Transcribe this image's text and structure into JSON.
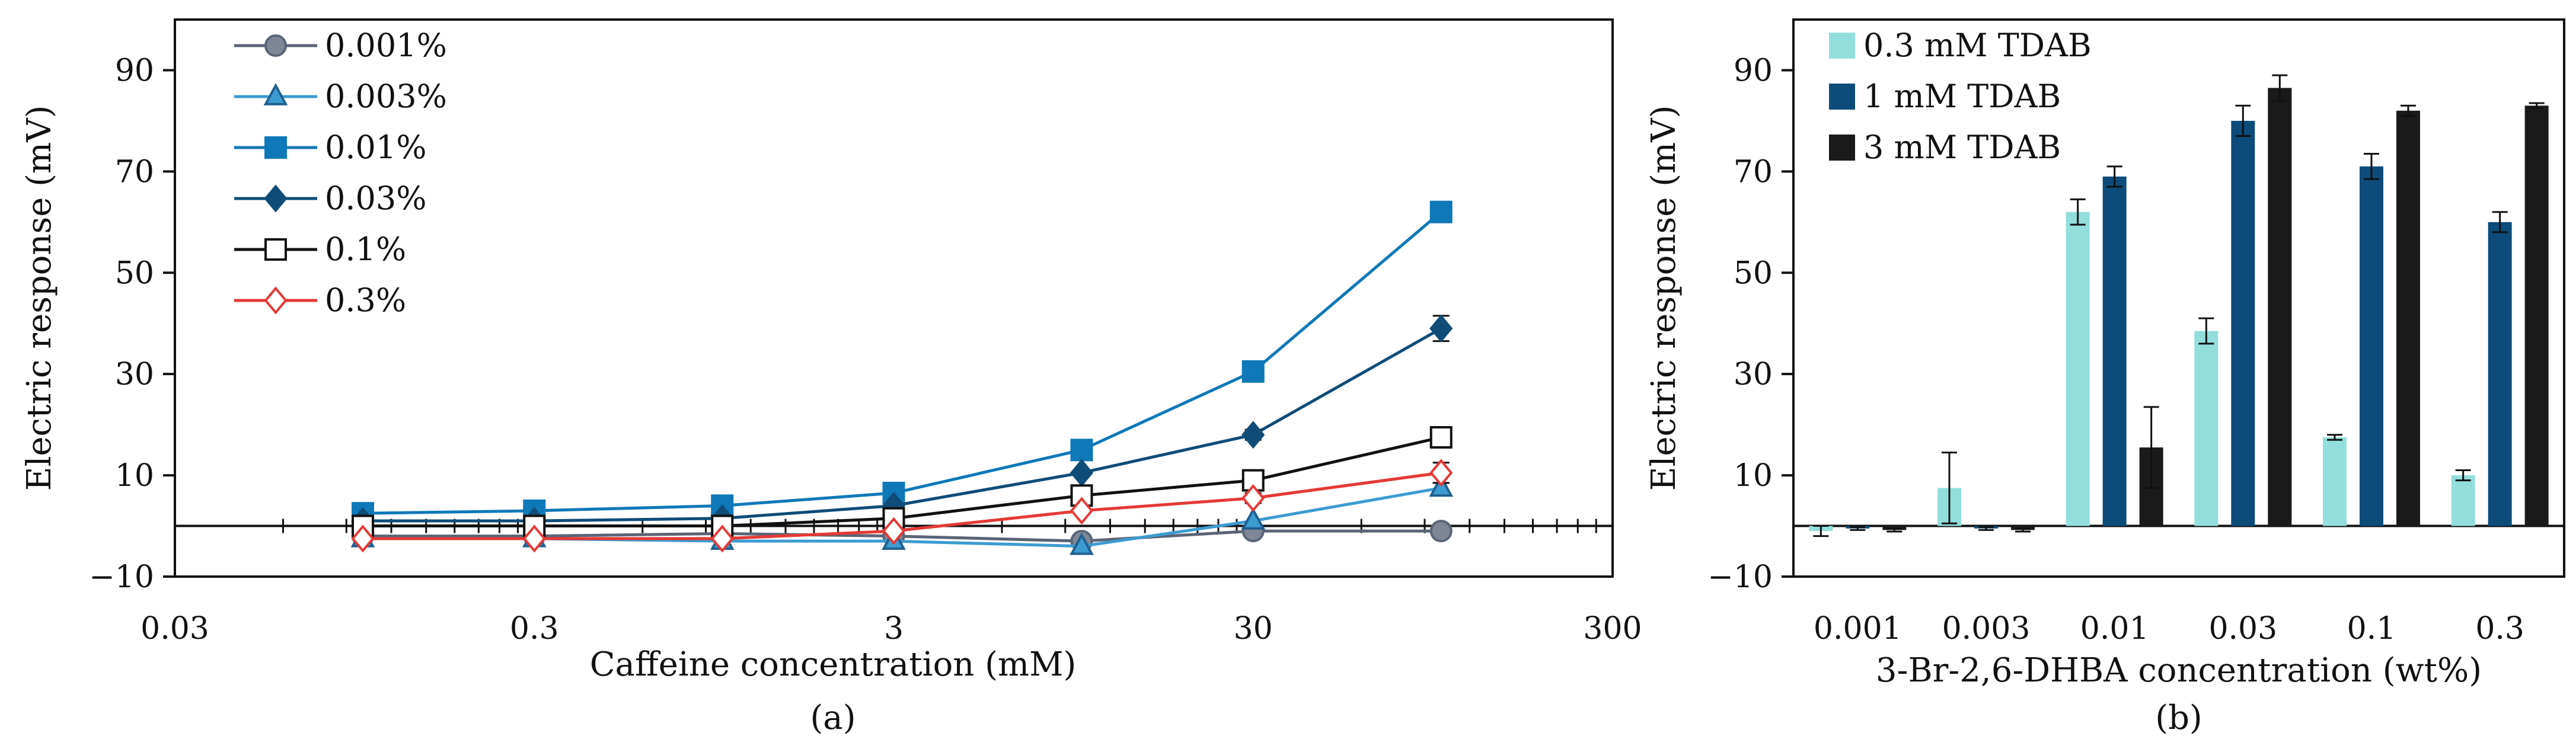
{
  "chart_data": [
    {
      "id": "a",
      "type": "line",
      "caption": "(a)",
      "xlabel": "Caffeine concentration (mM)",
      "ylabel": "Electric response (mV)",
      "xscale": "log",
      "xlim": [
        0.03,
        300
      ],
      "ylim": [
        -10,
        100
      ],
      "xticks": [
        0.03,
        0.3,
        3,
        30,
        300
      ],
      "xtick_labels": [
        "0.03",
        "0.3",
        "3",
        "30",
        "300"
      ],
      "yticks": [
        -10,
        10,
        30,
        50,
        70,
        90
      ],
      "ytick_labels": [
        "−10",
        "10",
        "30",
        "50",
        "70",
        "90"
      ],
      "legend_position": "top-left",
      "x": [
        0.1,
        0.3,
        1,
        3,
        10,
        30,
        100
      ],
      "series": [
        {
          "name": "0.001%",
          "marker": "circle",
          "color": "#5a6477",
          "fill": "#7f8796",
          "values": [
            -2,
            -2,
            -1.5,
            -2,
            -3,
            -1,
            -1
          ],
          "errors": [
            0.3,
            0.3,
            0.3,
            0.3,
            0.5,
            0.5,
            0.5
          ]
        },
        {
          "name": "0.003%",
          "marker": "triangle",
          "color": "#3c9bd1",
          "fill": "#3c9bd1",
          "values": [
            -2.5,
            -2.5,
            -3,
            -3,
            -4,
            1,
            7.5
          ],
          "errors": [
            0.3,
            0.3,
            0.3,
            0.3,
            0.5,
            0.5,
            1
          ]
        },
        {
          "name": "0.01%",
          "marker": "square",
          "color": "#0e78b8",
          "fill": "#0e78b8",
          "values": [
            2.5,
            3,
            4,
            6.5,
            15,
            30.5,
            62
          ],
          "errors": [
            0.5,
            0.5,
            0.5,
            0.5,
            0.5,
            0.5,
            2
          ]
        },
        {
          "name": "0.03%",
          "marker": "diamond",
          "color": "#0f4c78",
          "fill": "#0f4c78",
          "values": [
            1,
            1,
            1.5,
            4,
            10.5,
            18,
            39
          ],
          "errors": [
            0.3,
            0.3,
            0.3,
            0.5,
            0.5,
            1,
            2.5
          ]
        },
        {
          "name": "0.1%",
          "marker": "open-square",
          "color": "#111111",
          "fill": "#ffffff",
          "values": [
            0,
            0,
            0,
            1.5,
            6,
            9,
            17.5
          ],
          "errors": [
            0.3,
            0.3,
            0.3,
            0.5,
            0.5,
            0.8,
            2
          ]
        },
        {
          "name": "0.3%",
          "marker": "open-diamond",
          "color": "#e53935",
          "fill": "#ffffff",
          "values": [
            -2.5,
            -2.5,
            -2.5,
            -1,
            3,
            5.5,
            10.5
          ],
          "errors": [
            0.3,
            0.3,
            0.3,
            0.5,
            0.5,
            1,
            2
          ]
        }
      ]
    },
    {
      "id": "b",
      "type": "bar",
      "caption": "(b)",
      "xlabel": "3-Br-2,6-DHBA concentration (wt%)",
      "ylabel": "Electric response (mV)",
      "ylim": [
        -10,
        100
      ],
      "yticks": [
        -10,
        10,
        30,
        50,
        70,
        90
      ],
      "ytick_labels": [
        "−10",
        "10",
        "30",
        "50",
        "70",
        "90"
      ],
      "legend_position": "top-left",
      "categories": [
        "0.001",
        "0.003",
        "0.01",
        "0.03",
        "0.1",
        "0.3"
      ],
      "series": [
        {
          "name": "0.3 mM TDAB",
          "color": "#92dedd",
          "values": [
            -1,
            7.5,
            62,
            38.5,
            17.5,
            10
          ],
          "errors": [
            1,
            7,
            2.5,
            2.5,
            0.5,
            1
          ]
        },
        {
          "name": "1 mM TDAB",
          "color": "#0d4c7a",
          "values": [
            -0.5,
            -0.5,
            69,
            80,
            71,
            60
          ],
          "errors": [
            0.3,
            0.3,
            2,
            3,
            2.5,
            2
          ]
        },
        {
          "name": "3 mM TDAB",
          "color": "#1a1a1a",
          "values": [
            -0.8,
            -0.8,
            15.5,
            86.5,
            82,
            83
          ],
          "errors": [
            0.3,
            0.3,
            8,
            2.5,
            1,
            0.5
          ]
        }
      ]
    }
  ]
}
